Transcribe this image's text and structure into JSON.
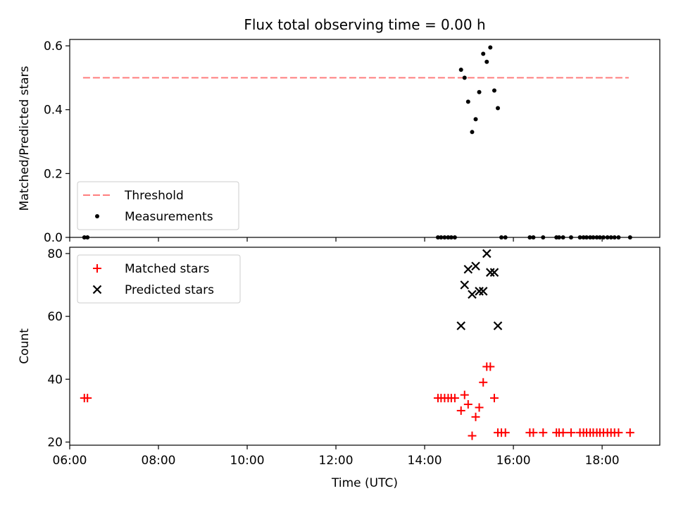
{
  "title": "Flux total observing time = 0.00 h",
  "chart_data": [
    {
      "type": "scatter",
      "panel": "top",
      "ylabel": "Matched/Predicted stars",
      "xlabel": "",
      "xlim": [
        6.0,
        19.3
      ],
      "ylim": [
        0.0,
        0.62
      ],
      "yticks": [
        0.0,
        0.2,
        0.4,
        0.6
      ],
      "ytick_labels": [
        "0.0",
        "0.2",
        "0.4",
        "0.6"
      ],
      "legend_position": "bottom-left",
      "threshold": {
        "name": "Threshold",
        "value": 0.5,
        "x_range": [
          6.3,
          18.6
        ],
        "color": "#ff7f7f",
        "style": "dashed"
      },
      "series": [
        {
          "name": "Measurements",
          "color": "#000000",
          "marker": "dot",
          "x": [
            6.33,
            6.4,
            14.3,
            14.37,
            14.45,
            14.53,
            14.6,
            14.68,
            14.82,
            14.9,
            14.98,
            15.07,
            15.15,
            15.23,
            15.32,
            15.4,
            15.48,
            15.57,
            15.65,
            15.73,
            15.82,
            16.37,
            16.45,
            16.67,
            16.97,
            17.03,
            17.12,
            17.3,
            17.5,
            17.58,
            17.65,
            17.73,
            17.8,
            17.88,
            17.95,
            18.03,
            18.12,
            18.2,
            18.28,
            18.37,
            18.63
          ],
          "y": [
            0.0,
            0.0,
            0.0,
            0.0,
            0.0,
            0.0,
            0.0,
            0.0,
            0.525,
            0.5,
            0.425,
            0.33,
            0.37,
            0.455,
            0.575,
            0.55,
            0.595,
            0.46,
            0.405,
            0.0,
            0.0,
            0.0,
            0.0,
            0.0,
            0.0,
            0.0,
            0.0,
            0.0,
            0.0,
            0.0,
            0.0,
            0.0,
            0.0,
            0.0,
            0.0,
            0.0,
            0.0,
            0.0,
            0.0,
            0.0,
            0.0
          ]
        }
      ]
    },
    {
      "type": "scatter",
      "panel": "bottom",
      "ylabel": "Count",
      "xlabel": "Time (UTC)",
      "xlim": [
        6.0,
        19.3
      ],
      "ylim": [
        19.0,
        82.0
      ],
      "xticks": [
        6,
        8,
        10,
        12,
        14,
        16,
        18
      ],
      "xtick_labels": [
        "06:00",
        "08:00",
        "10:00",
        "12:00",
        "14:00",
        "16:00",
        "18:00"
      ],
      "yticks": [
        20,
        40,
        60,
        80
      ],
      "ytick_labels": [
        "20",
        "40",
        "60",
        "80"
      ],
      "legend_position": "top-left",
      "series": [
        {
          "name": "Matched stars",
          "color": "#ff0000",
          "marker": "plus",
          "x": [
            6.33,
            6.4,
            14.3,
            14.37,
            14.45,
            14.53,
            14.6,
            14.68,
            14.82,
            14.9,
            14.98,
            15.07,
            15.15,
            15.23,
            15.32,
            15.4,
            15.48,
            15.57,
            15.65,
            15.73,
            15.82,
            16.37,
            16.45,
            16.67,
            16.97,
            17.03,
            17.12,
            17.3,
            17.5,
            17.58,
            17.65,
            17.73,
            17.8,
            17.88,
            17.95,
            18.03,
            18.12,
            18.2,
            18.28,
            18.37,
            18.63
          ],
          "y": [
            34,
            34,
            34,
            34,
            34,
            34,
            34,
            34,
            30,
            35,
            32,
            22,
            28,
            31,
            39,
            44,
            44,
            34,
            23,
            23,
            23,
            23,
            23,
            23,
            23,
            23,
            23,
            23,
            23,
            23,
            23,
            23,
            23,
            23,
            23,
            23,
            23,
            23,
            23,
            23,
            23
          ]
        },
        {
          "name": "Predicted stars",
          "color": "#000000",
          "marker": "x",
          "x": [
            14.82,
            14.9,
            14.98,
            15.07,
            15.15,
            15.23,
            15.32,
            15.4,
            15.48,
            15.57,
            15.65
          ],
          "y": [
            57,
            70,
            75,
            67,
            76,
            68,
            68,
            80,
            74,
            74,
            57
          ]
        }
      ]
    }
  ]
}
